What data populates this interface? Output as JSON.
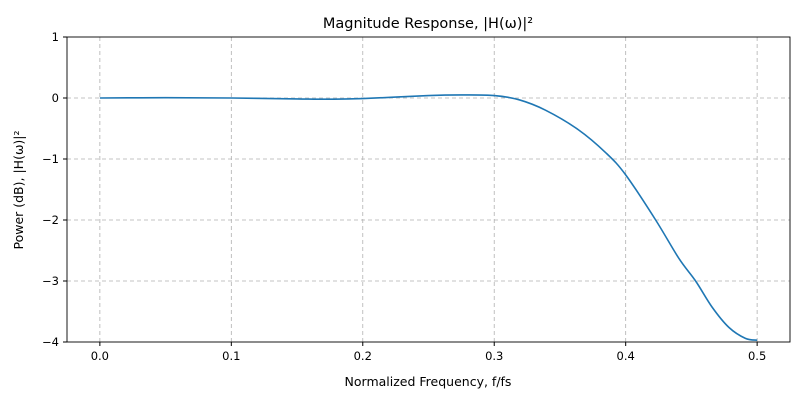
{
  "chart_data": {
    "type": "line",
    "title": "Magnitude Response, |H(ω)|²",
    "xlabel": "Normalized Frequency, f/fs",
    "ylabel": "Power (dB), |H(ω)|²",
    "xlim": [
      -0.025,
      0.525
    ],
    "ylim": [
      -4,
      1
    ],
    "xticks": [
      0.0,
      0.1,
      0.2,
      0.3,
      0.4,
      0.5
    ],
    "xtick_labels": [
      "0.0",
      "0.1",
      "0.2",
      "0.3",
      "0.4",
      "0.5"
    ],
    "yticks": [
      1,
      0,
      -1,
      -2,
      -3,
      -4
    ],
    "ytick_labels": [
      "1",
      "0",
      "−1",
      "−2",
      "−3",
      "−4"
    ],
    "grid": true,
    "line_color": "#1f77b4",
    "series": [
      {
        "x": [
          0.0,
          0.05,
          0.1,
          0.15,
          0.175,
          0.2,
          0.25,
          0.275,
          0.3,
          0.319,
          0.339,
          0.364,
          0.385,
          0.4,
          0.4228,
          0.4405,
          0.4532,
          0.4658,
          0.4785,
          0.4911,
          0.5
        ],
        "y": [
          0.0,
          0.005,
          0.0,
          -0.015,
          -0.02,
          -0.01,
          0.04,
          0.05,
          0.04,
          -0.03,
          -0.2,
          -0.52,
          -0.9,
          -1.26,
          -2.0,
          -2.63,
          -3.0,
          -3.43,
          -3.76,
          -3.94,
          -3.97
        ]
      }
    ]
  }
}
